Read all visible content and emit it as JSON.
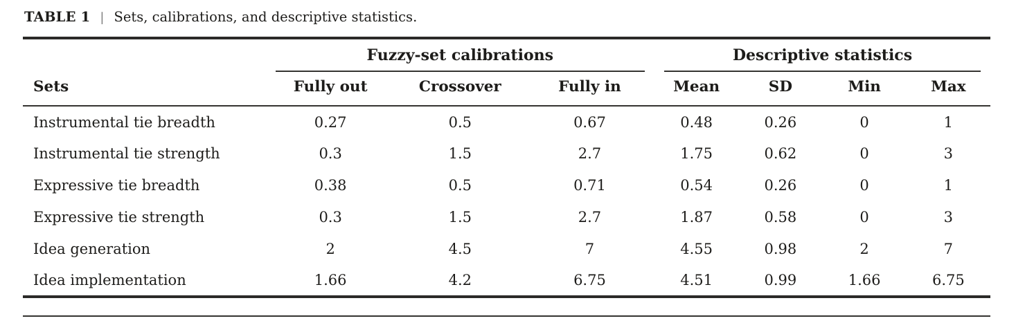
{
  "caption": {
    "label": "TABLE 1",
    "separator": "|",
    "text": "Sets, calibrations, and descriptive statistics."
  },
  "table": {
    "group_headers": [
      {
        "label": "Fuzzy-set calibrations",
        "colspan": 3
      },
      {
        "label": "Descriptive statistics",
        "colspan": 4
      }
    ],
    "columns": [
      "Sets",
      "Fully out",
      "Crossover",
      "Fully in",
      "Mean",
      "SD",
      "Min",
      "Max"
    ],
    "rows": [
      [
        "Instrumental tie breadth",
        "0.27",
        "0.5",
        "0.67",
        "0.48",
        "0.26",
        "0",
        "1"
      ],
      [
        "Instrumental tie strength",
        "0.3",
        "1.5",
        "2.7",
        "1.75",
        "0.62",
        "0",
        "3"
      ],
      [
        "Expressive tie breadth",
        "0.38",
        "0.5",
        "0.71",
        "0.54",
        "0.26",
        "0",
        "1"
      ],
      [
        "Expressive tie strength",
        "0.3",
        "1.5",
        "2.7",
        "1.87",
        "0.58",
        "0",
        "3"
      ],
      [
        "Idea generation",
        "2",
        "4.5",
        "7",
        "4.55",
        "0.98",
        "2",
        "7"
      ],
      [
        "Idea implementation",
        "1.66",
        "4.2",
        "6.75",
        "4.51",
        "0.99",
        "1.66",
        "6.75"
      ]
    ]
  },
  "colors": {
    "text": "#1d1c1a",
    "rule_thick": "#2b2a28",
    "rule_thin": "#343330",
    "caption_separator": "#7a7a7a",
    "background": "#ffffff"
  }
}
